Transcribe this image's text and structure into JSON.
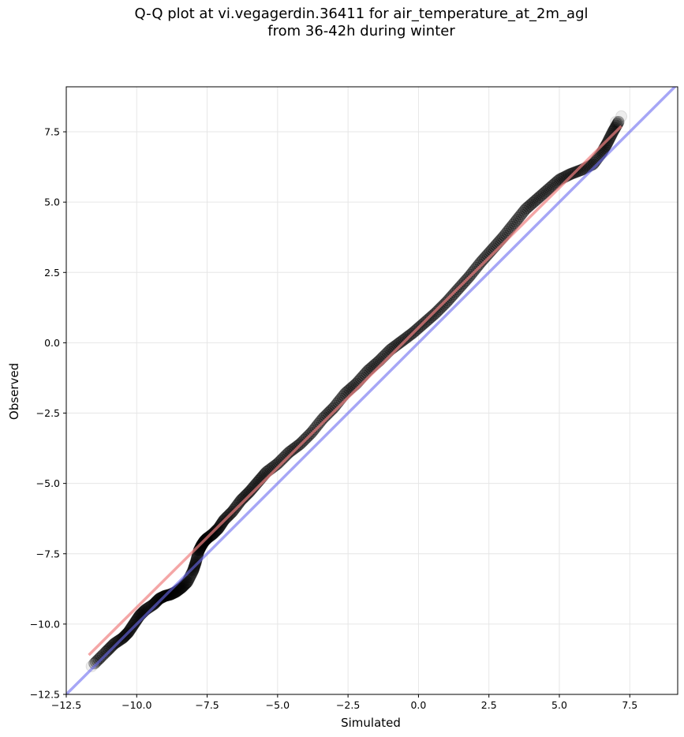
{
  "chart_data": {
    "type": "scatter",
    "title_line1": "Q-Q plot at vi.vegagerdin.36411 for air_temperature_at_2m_agl",
    "title_line2": "from 36-42h during winter",
    "xlabel": "Simulated",
    "ylabel": "Observed",
    "xlim": [
      -12.5,
      9.2
    ],
    "ylim": [
      -12.5,
      9.1
    ],
    "xticks": [
      -12.5,
      -10.0,
      -7.5,
      -5.0,
      -2.5,
      0.0,
      2.5,
      5.0,
      7.5
    ],
    "yticks": [
      -12.5,
      -10.0,
      -7.5,
      -5.0,
      -2.5,
      0.0,
      2.5,
      5.0,
      7.5
    ],
    "xtick_labels": [
      "−12.5",
      "−10.0",
      "−7.5",
      "−5.0",
      "−2.5",
      "0.0",
      "2.5",
      "5.0",
      "7.5"
    ],
    "ytick_labels": [
      "−12.5",
      "−10.0",
      "−7.5",
      "−5.0",
      "−2.5",
      "0.0",
      "2.5",
      "5.0",
      "7.5"
    ],
    "grid": true,
    "colors": {
      "points": "#000000",
      "fit_line": "#f08080",
      "identity_line": "#6b6bf0",
      "grid": "#e6e6e6"
    },
    "identity_line": {
      "x": [
        -12.5,
        9.2
      ],
      "y": [
        -12.5,
        9.2
      ]
    },
    "fit_line": {
      "x": [
        -11.7,
        7.2
      ],
      "y": [
        -11.1,
        7.7
      ]
    },
    "quantiles_x": [
      -11.5,
      -11.1,
      -10.8,
      -10.5,
      -10.3,
      -10.1,
      -9.9,
      -9.7,
      -9.4,
      -9.2,
      -9.0,
      -8.8,
      -8.6,
      -8.4,
      -8.2,
      -8.0,
      -7.9,
      -7.8,
      -7.7,
      -7.6,
      -7.5,
      -7.3,
      -7.1,
      -6.9,
      -6.6,
      -6.3,
      -6.0,
      -5.7,
      -5.4,
      -5.0,
      -4.6,
      -4.2,
      -3.8,
      -3.4,
      -3.0,
      -2.6,
      -2.2,
      -1.8,
      -1.4,
      -1.0,
      -0.6,
      -0.2,
      0.2,
      0.6,
      1.0,
      1.4,
      1.8,
      2.2,
      2.6,
      3.0,
      3.4,
      3.8,
      4.2,
      4.6,
      5.0,
      5.4,
      5.8,
      6.2,
      6.5,
      6.7,
      6.9,
      7.1
    ],
    "quantiles_y": [
      -11.4,
      -11.0,
      -10.7,
      -10.5,
      -10.3,
      -10.0,
      -9.7,
      -9.5,
      -9.3,
      -9.1,
      -9.0,
      -8.95,
      -8.85,
      -8.7,
      -8.5,
      -8.1,
      -7.8,
      -7.4,
      -7.2,
      -7.05,
      -6.95,
      -6.8,
      -6.6,
      -6.3,
      -6.0,
      -5.6,
      -5.3,
      -4.95,
      -4.6,
      -4.3,
      -3.9,
      -3.6,
      -3.2,
      -2.7,
      -2.3,
      -1.8,
      -1.45,
      -1.0,
      -0.65,
      -0.25,
      0.05,
      0.35,
      0.7,
      1.05,
      1.45,
      1.9,
      2.35,
      2.85,
      3.3,
      3.75,
      4.25,
      4.75,
      5.1,
      5.45,
      5.8,
      6.0,
      6.15,
      6.35,
      6.75,
      7.1,
      7.5,
      7.85
    ],
    "faint_points": [
      {
        "x": -11.3,
        "y": -11.2
      },
      {
        "x": -11.6,
        "y": -11.5
      },
      {
        "x": 7.0,
        "y": 7.85
      },
      {
        "x": 7.2,
        "y": 8.05
      }
    ]
  }
}
